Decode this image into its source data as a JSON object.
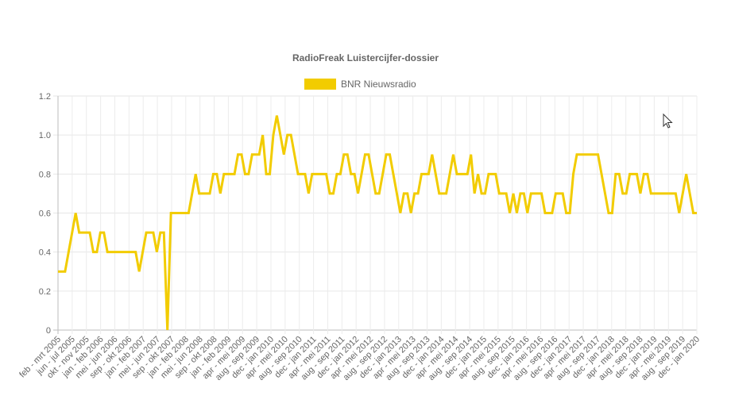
{
  "chart_data": {
    "type": "line",
    "title": "RadioFreak Luistercijfer-dossier",
    "xlabel": "",
    "ylabel": "",
    "ylim": [
      0,
      1.2
    ],
    "yticks": [
      "0",
      "0.2",
      "0.4",
      "0.6",
      "0.8",
      "1.0",
      "1.2"
    ],
    "grid": true,
    "legend_position": "top",
    "x_tick_labels": [
      "feb - mrt 2005",
      "jun - jul 2005",
      "okt - nov 2005",
      "jan - feb 2006",
      "mei - jun 2006",
      "sep - okt 2006",
      "jan - feb 2007",
      "mei - jun 2007",
      "sep - okt 2007",
      "jan - feb 2008",
      "mei - jun 2008",
      "sep - okt 2008",
      "jan - feb 2009",
      "apr - mei 2009",
      "aug - sep 2009",
      "dec - jan 2010",
      "apr - mei 2010",
      "aug - sep 2010",
      "dec - jan 2011",
      "apr - mei 2011",
      "aug - sep 2011",
      "dec - jan 2012",
      "apr - mei 2012",
      "aug - sep 2012",
      "dec - jan 2013",
      "apr - mei 2013",
      "aug - sep 2013",
      "dec - jan 2014",
      "apr - mei 2014",
      "aug - sep 2014",
      "dec - jan 2015",
      "apr - mei 2015",
      "aug - sep 2015",
      "dec - jan 2016",
      "apr - mei 2016",
      "aug - sep 2016",
      "dec - jan 2017",
      "apr - mei 2017",
      "aug - sep 2017",
      "dec - jan 2018",
      "apr - mei 2018",
      "aug - sep 2018",
      "dec - jan 2019",
      "apr - mei 2019",
      "aug - sep 2019",
      "dec - jan 2020"
    ],
    "series": [
      {
        "name": "BNR Nieuwsradio",
        "color": "#f2cc00",
        "values": [
          0.3,
          0.3,
          0.3,
          0.4,
          0.5,
          0.6,
          0.5,
          0.5,
          0.5,
          0.5,
          0.4,
          0.4,
          0.5,
          0.5,
          0.4,
          0.4,
          0.4,
          0.4,
          0.4,
          0.4,
          0.4,
          0.4,
          0.4,
          0.3,
          0.4,
          0.5,
          0.5,
          0.5,
          0.4,
          0.5,
          0.5,
          0.0,
          0.6,
          0.6,
          0.6,
          0.6,
          0.6,
          0.6,
          0.7,
          0.8,
          0.7,
          0.7,
          0.7,
          0.7,
          0.8,
          0.8,
          0.7,
          0.8,
          0.8,
          0.8,
          0.8,
          0.9,
          0.9,
          0.8,
          0.8,
          0.9,
          0.9,
          0.9,
          1.0,
          0.8,
          0.8,
          1.0,
          1.1,
          1.0,
          0.9,
          1.0,
          1.0,
          0.9,
          0.8,
          0.8,
          0.8,
          0.7,
          0.8,
          0.8,
          0.8,
          0.8,
          0.8,
          0.7,
          0.7,
          0.8,
          0.8,
          0.9,
          0.9,
          0.8,
          0.8,
          0.7,
          0.8,
          0.9,
          0.9,
          0.8,
          0.7,
          0.7,
          0.8,
          0.9,
          0.9,
          0.8,
          0.7,
          0.6,
          0.7,
          0.7,
          0.6,
          0.7,
          0.7,
          0.8,
          0.8,
          0.8,
          0.9,
          0.8,
          0.7,
          0.7,
          0.7,
          0.8,
          0.9,
          0.8,
          0.8,
          0.8,
          0.8,
          0.9,
          0.7,
          0.8,
          0.7,
          0.7,
          0.8,
          0.8,
          0.8,
          0.7,
          0.7,
          0.7,
          0.6,
          0.7,
          0.6,
          0.7,
          0.7,
          0.6,
          0.7,
          0.7,
          0.7,
          0.7,
          0.6,
          0.6,
          0.6,
          0.7,
          0.7,
          0.7,
          0.6,
          0.6,
          0.8,
          0.9,
          0.9,
          0.9,
          0.9,
          0.9,
          0.9,
          0.9,
          0.8,
          0.7,
          0.6,
          0.6,
          0.8,
          0.8,
          0.7,
          0.7,
          0.8,
          0.8,
          0.8,
          0.7,
          0.8,
          0.8,
          0.7,
          0.7,
          0.7,
          0.7,
          0.7,
          0.7,
          0.7,
          0.7,
          0.6,
          0.7,
          0.8,
          0.7,
          0.6,
          0.6
        ]
      }
    ]
  }
}
